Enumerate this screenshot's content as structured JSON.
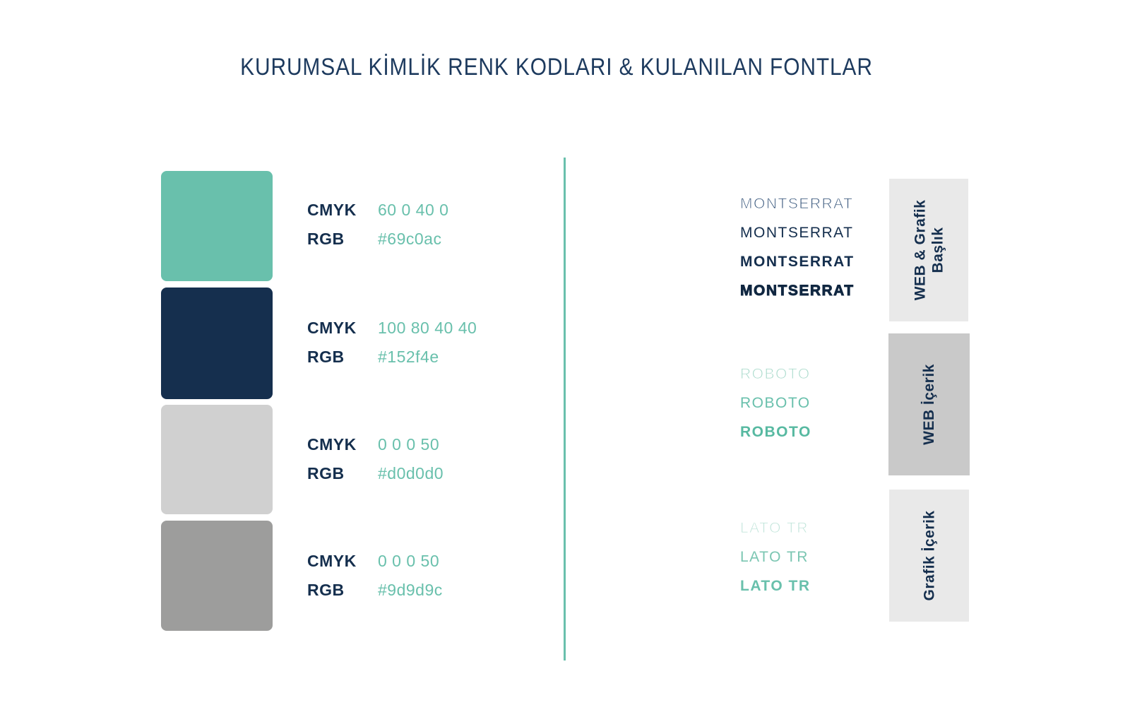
{
  "title": "KURUMSAL KİMLİK RENK KODLARI & KULANILAN FONTLAR",
  "divider_color": "#69c0ac",
  "text_colors": {
    "navy": "#152f4e",
    "teal": "#69c0ac",
    "title": "#1d3a5e"
  },
  "swatches": [
    {
      "hex": "#69c0ac",
      "cmyk_label": "CMYK",
      "cmyk_value": "60 0 40 0",
      "rgb_label": "RGB",
      "rgb_value": "#69c0ac"
    },
    {
      "hex": "#152f4e",
      "cmyk_label": "CMYK",
      "cmyk_value": "100 80 40 40",
      "rgb_label": "RGB",
      "rgb_value": "#152f4e"
    },
    {
      "hex": "#d0d0d0",
      "cmyk_label": "CMYK",
      "cmyk_value": "0 0 0 50",
      "rgb_label": "RGB",
      "rgb_value": "#d0d0d0"
    },
    {
      "hex": "#9d9d9c",
      "cmyk_label": "CMYK",
      "cmyk_value": "0 0 0 50",
      "rgb_label": "RGB",
      "rgb_value": "#9d9d9c"
    }
  ],
  "font_groups": [
    {
      "box_color": "#e9e9e9",
      "label_lines": [
        "WEB & Grafik",
        "Başlık"
      ],
      "samples": [
        {
          "text": "MONTSERRAT",
          "color": "#35547a"
        },
        {
          "text": "MONTSERRAT",
          "color": "#152f4e"
        },
        {
          "text": "MONTSERRAT",
          "color": "#152f4e"
        },
        {
          "text": "MONTSERRAT",
          "color": "#102741"
        }
      ]
    },
    {
      "box_color": "#c9c9c9",
      "label_lines": [
        "WEB İçerik"
      ],
      "samples": [
        {
          "text": "ROBOTO",
          "color": "#a7d9ca"
        },
        {
          "text": "ROBOTO",
          "color": "#69c0ac"
        },
        {
          "text": "ROBOTO",
          "color": "#57b9a1"
        }
      ]
    },
    {
      "box_color": "#e9e9e9",
      "label_lines": [
        "Grafik İçerik"
      ],
      "samples": [
        {
          "text": "LATO TR",
          "color": "#bfe4d9"
        },
        {
          "text": "LATO TR",
          "color": "#7bc6b2"
        },
        {
          "text": "LATO TR",
          "color": "#69c0ac"
        }
      ]
    }
  ]
}
